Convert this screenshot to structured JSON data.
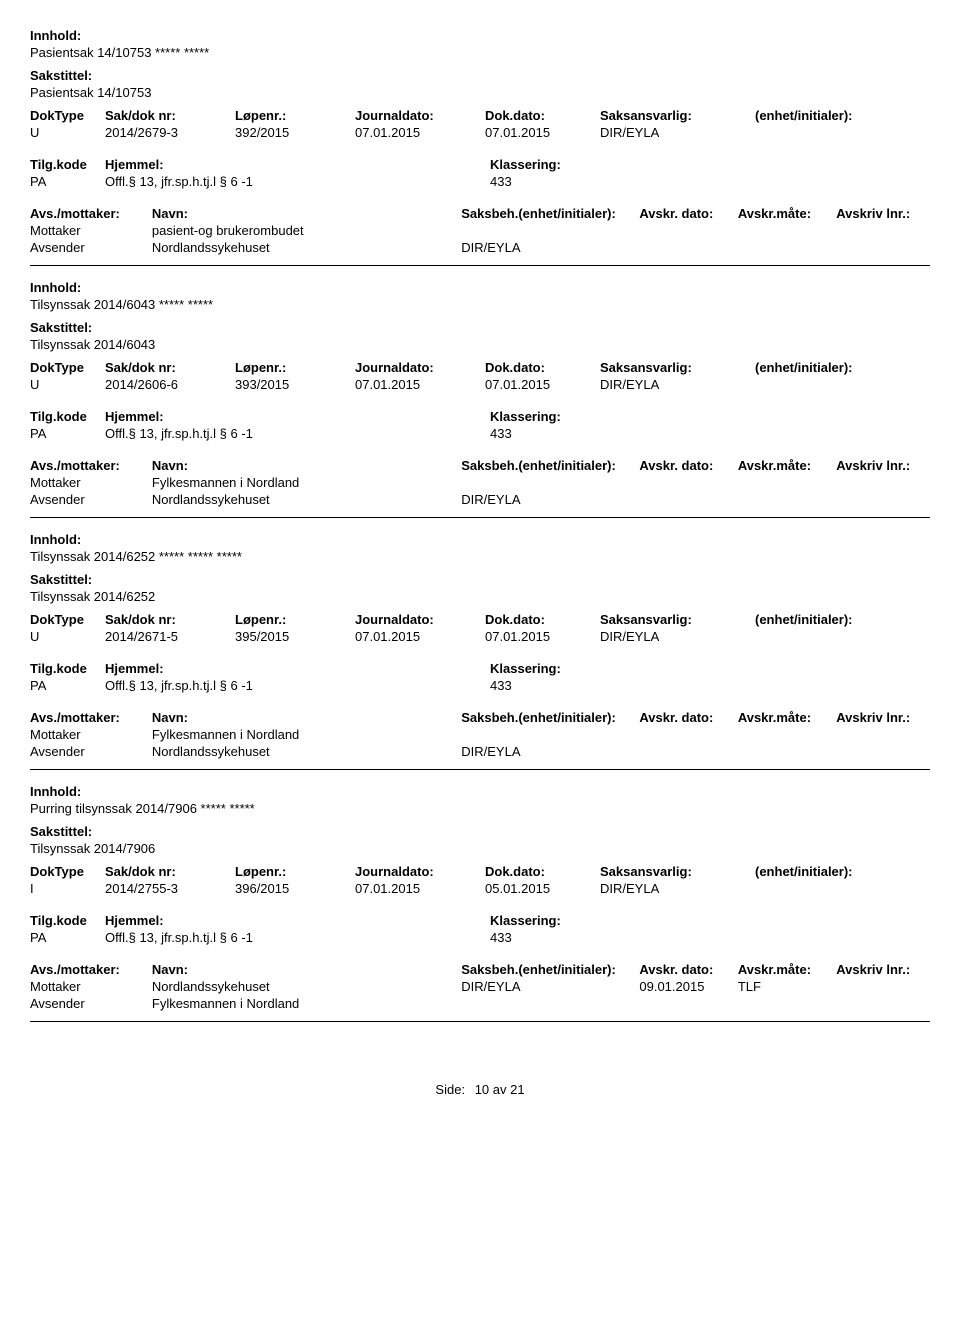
{
  "labels": {
    "innhold": "Innhold:",
    "sakstittel": "Sakstittel:",
    "doktype": "DokType",
    "sakdok": "Sak/dok nr:",
    "lopenr": "Løpenr.:",
    "journaldato": "Journaldato:",
    "dokdato": "Dok.dato:",
    "saksansvarlig": "Saksansvarlig:",
    "enhet": "(enhet/initialer):",
    "tilgkode": "Tilg.kode",
    "hjemmel": "Hjemmel:",
    "klassering": "Klassering:",
    "avsmottaker": "Avs./mottaker:",
    "navn": "Navn:",
    "saksbeh": "Saksbeh.(enhet/initialer):",
    "avskrdato": "Avskr. dato:",
    "avskrmate": "Avskr.måte:",
    "avskrivlnr": "Avskriv lnr.:",
    "mottaker": "Mottaker",
    "avsender": "Avsender"
  },
  "records": [
    {
      "innhold": "Pasientsak 14/10753 ***** *****",
      "sakstittel": "Pasientsak 14/10753",
      "doktype": "U",
      "sakdok": "2014/2679-3",
      "lopenr": "392/2015",
      "journaldato": "07.01.2015",
      "dokdato": "07.01.2015",
      "saksansvarlig": "DIR/EYLA",
      "enhet": "",
      "tilgkode": "PA",
      "hjemmel": "Offl.§ 13, jfr.sp.h.tj.l § 6 -1",
      "klassering": "433",
      "parties": [
        {
          "role": "Mottaker",
          "navn": "pasient-og brukerombudet",
          "saksbeh": "",
          "avskrdato": "",
          "avskrmate": "",
          "avskrlnr": ""
        },
        {
          "role": "Avsender",
          "navn": "Nordlandssykehuset",
          "saksbeh": "DIR/EYLA",
          "avskrdato": "",
          "avskrmate": "",
          "avskrlnr": ""
        }
      ]
    },
    {
      "innhold": "Tilsynssak 2014/6043 ***** *****",
      "sakstittel": "Tilsynssak 2014/6043",
      "doktype": "U",
      "sakdok": "2014/2606-6",
      "lopenr": "393/2015",
      "journaldato": "07.01.2015",
      "dokdato": "07.01.2015",
      "saksansvarlig": "DIR/EYLA",
      "enhet": "",
      "tilgkode": "PA",
      "hjemmel": "Offl.§ 13, jfr.sp.h.tj.l § 6 -1",
      "klassering": "433",
      "parties": [
        {
          "role": "Mottaker",
          "navn": "Fylkesmannen i Nordland",
          "saksbeh": "",
          "avskrdato": "",
          "avskrmate": "",
          "avskrlnr": ""
        },
        {
          "role": "Avsender",
          "navn": "Nordlandssykehuset",
          "saksbeh": "DIR/EYLA",
          "avskrdato": "",
          "avskrmate": "",
          "avskrlnr": ""
        }
      ]
    },
    {
      "innhold": "Tilsynssak 2014/6252 ***** ***** *****",
      "sakstittel": "Tilsynssak 2014/6252",
      "doktype": "U",
      "sakdok": "2014/2671-5",
      "lopenr": "395/2015",
      "journaldato": "07.01.2015",
      "dokdato": "07.01.2015",
      "saksansvarlig": "DIR/EYLA",
      "enhet": "",
      "tilgkode": "PA",
      "hjemmel": "Offl.§ 13, jfr.sp.h.tj.l § 6 -1",
      "klassering": "433",
      "parties": [
        {
          "role": "Mottaker",
          "navn": "Fylkesmannen i Nordland",
          "saksbeh": "",
          "avskrdato": "",
          "avskrmate": "",
          "avskrlnr": ""
        },
        {
          "role": "Avsender",
          "navn": "Nordlandssykehuset",
          "saksbeh": "DIR/EYLA",
          "avskrdato": "",
          "avskrmate": "",
          "avskrlnr": ""
        }
      ]
    },
    {
      "innhold": "Purring tilsynssak 2014/7906 ***** *****",
      "sakstittel": "Tilsynssak 2014/7906",
      "doktype": "I",
      "sakdok": "2014/2755-3",
      "lopenr": "396/2015",
      "journaldato": "07.01.2015",
      "dokdato": "05.01.2015",
      "saksansvarlig": "DIR/EYLA",
      "enhet": "",
      "tilgkode": "PA",
      "hjemmel": "Offl.§ 13, jfr.sp.h.tj.l § 6 -1",
      "klassering": "433",
      "parties": [
        {
          "role": "Mottaker",
          "navn": "Nordlandssykehuset",
          "saksbeh": "DIR/EYLA",
          "avskrdato": "09.01.2015",
          "avskrmate": "TLF",
          "avskrlnr": ""
        },
        {
          "role": "Avsender",
          "navn": "Fylkesmannen i Nordland",
          "saksbeh": "",
          "avskrdato": "",
          "avskrmate": "",
          "avskrlnr": ""
        }
      ]
    }
  ],
  "footer": {
    "label": "Side:",
    "page": "10 av  21"
  }
}
